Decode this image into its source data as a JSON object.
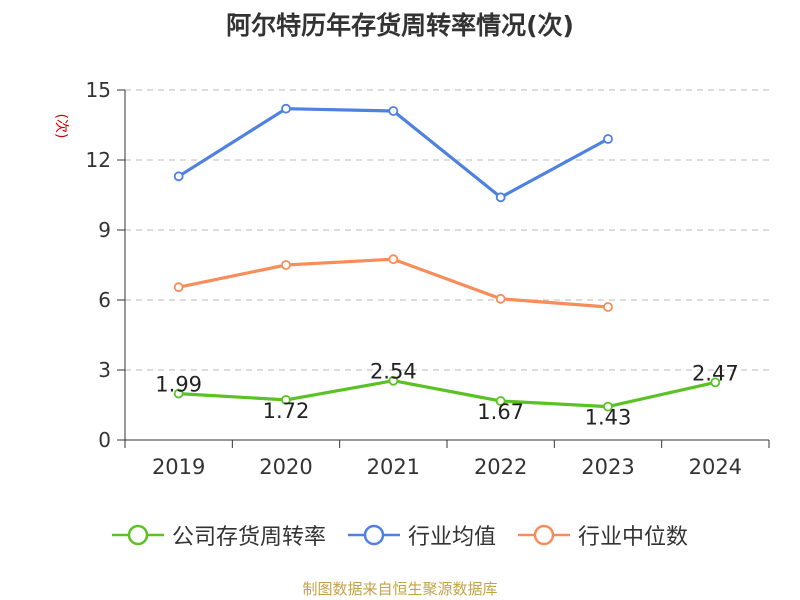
{
  "source_note": "制图数据来自恒生聚源数据库",
  "chart_data": {
    "type": "line",
    "title": "阿尔特历年存货周转率情况(次)",
    "ylabel": "(次)",
    "xlabel": "",
    "categories": [
      "2019",
      "2020",
      "2021",
      "2022",
      "2023",
      "2024"
    ],
    "ylim": [
      0,
      15
    ],
    "yticks": [
      0,
      3,
      6,
      9,
      12,
      15
    ],
    "grid": true,
    "legend_position": "bottom",
    "series": [
      {
        "name": "公司存货周转率",
        "color": "#5bc225",
        "values": [
          1.99,
          1.72,
          2.54,
          1.67,
          1.43,
          2.47
        ],
        "show_labels": true
      },
      {
        "name": "行业均值",
        "color": "#4f81e0",
        "values": [
          11.3,
          14.2,
          14.1,
          10.4,
          12.9,
          null
        ],
        "show_labels": false
      },
      {
        "name": "行业中位数",
        "color": "#f78d5a",
        "values": [
          6.55,
          7.5,
          7.75,
          6.05,
          5.7,
          null
        ],
        "show_labels": false
      }
    ]
  }
}
